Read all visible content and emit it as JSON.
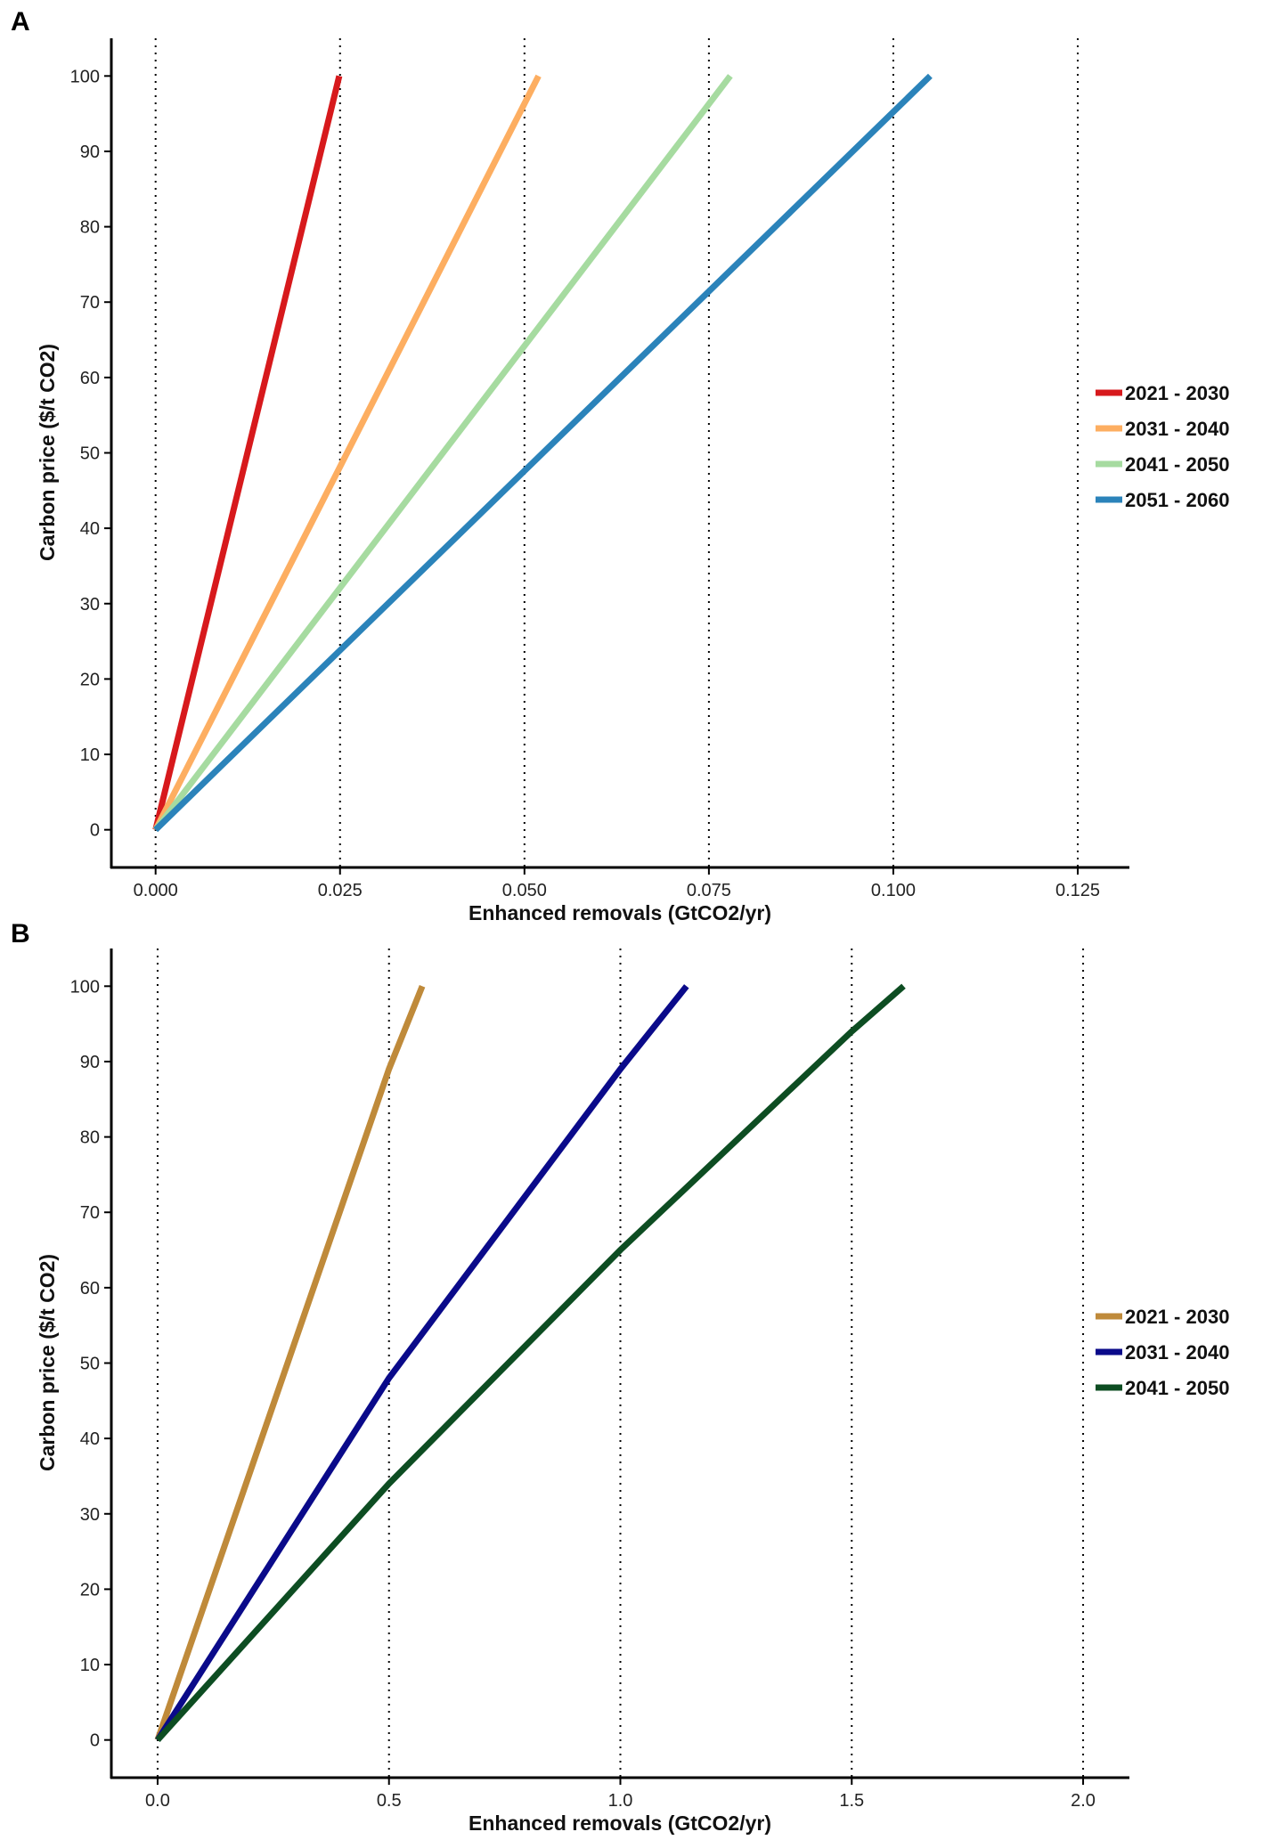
{
  "chart_data": [
    {
      "type": "line",
      "panel": "A",
      "xlabel": "Enhanced removals (GtCO2/yr)",
      "ylabel": "Carbon price ($/t CO2)",
      "xlim": [
        -0.006,
        0.132
      ],
      "ylim": [
        -5,
        105
      ],
      "xticks": [
        0.0,
        0.025,
        0.05,
        0.075,
        0.1,
        0.125
      ],
      "xtick_labels": [
        "0.000",
        "0.025",
        "0.050",
        "0.075",
        "0.100",
        "0.125"
      ],
      "yticks": [
        0,
        10,
        20,
        30,
        40,
        50,
        60,
        70,
        80,
        90,
        100
      ],
      "ytick_labels": [
        "0",
        "10",
        "20",
        "30",
        "40",
        "50",
        "60",
        "70",
        "80",
        "90",
        "100"
      ],
      "grid_x_dotted": [
        0.0,
        0.025,
        0.05,
        0.075,
        0.1,
        0.125
      ],
      "legend_position": "right",
      "series": [
        {
          "name": "2021 - 2030",
          "color": "#d7191c",
          "x": [
            0.0,
            0.0249
          ],
          "y": [
            0,
            100
          ]
        },
        {
          "name": "2031 - 2040",
          "color": "#fdae61",
          "x": [
            0.0,
            0.0519
          ],
          "y": [
            0,
            100
          ]
        },
        {
          "name": "2041 - 2050",
          "color": "#a6dba0",
          "x": [
            0.0,
            0.0779
          ],
          "y": [
            0,
            100
          ]
        },
        {
          "name": "2051 - 2060",
          "color": "#2b83ba",
          "x": [
            0.0,
            0.105
          ],
          "y": [
            0,
            100
          ]
        }
      ]
    },
    {
      "type": "line",
      "panel": "B",
      "xlabel": "Enhanced removals (GtCO2/yr)",
      "ylabel": "Carbon price ($/t CO2)",
      "xlim": [
        -0.1,
        2.1
      ],
      "ylim": [
        -5,
        105
      ],
      "xticks": [
        0.0,
        0.5,
        1.0,
        1.5,
        2.0
      ],
      "xtick_labels": [
        "0.0",
        "0.5",
        "1.0",
        "1.5",
        "2.0"
      ],
      "yticks": [
        0,
        10,
        20,
        30,
        40,
        50,
        60,
        70,
        80,
        90,
        100
      ],
      "ytick_labels": [
        "0",
        "10",
        "20",
        "30",
        "40",
        "50",
        "60",
        "70",
        "80",
        "90",
        "100"
      ],
      "grid_x_dotted": [
        0.0,
        0.5,
        1.0,
        1.5,
        2.0
      ],
      "legend_position": "right",
      "series": [
        {
          "name": "2021 - 2030",
          "color": "#bf8a3a",
          "x": [
            0.0,
            0.5,
            0.572
          ],
          "y": [
            0,
            89,
            100
          ]
        },
        {
          "name": "2031 - 2040",
          "color": "#0a0a8a",
          "x": [
            0.0,
            0.5,
            1.0,
            1.143
          ],
          "y": [
            0,
            48,
            89,
            100
          ]
        },
        {
          "name": "2041 - 2050",
          "color": "#0d4d22",
          "x": [
            0.0,
            0.5,
            1.0,
            1.5,
            1.612
          ],
          "y": [
            0,
            34,
            65,
            94,
            100
          ]
        }
      ]
    }
  ]
}
